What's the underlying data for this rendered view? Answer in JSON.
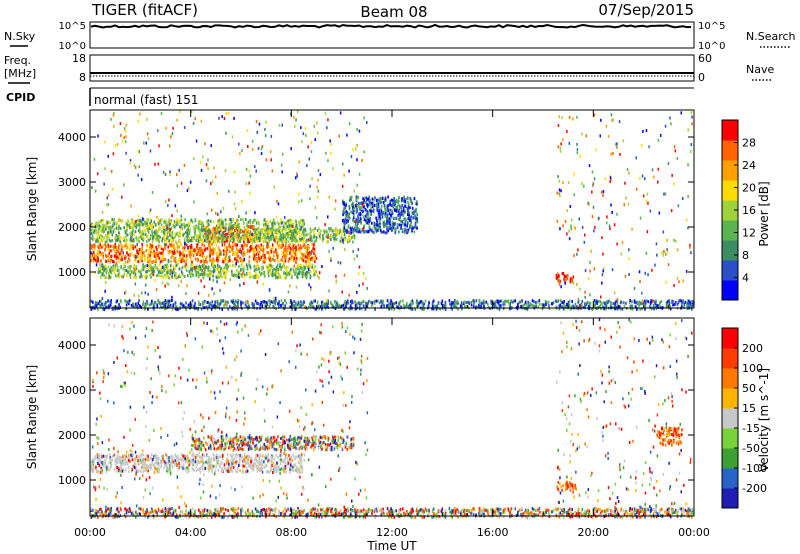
{
  "header": {
    "radar": "TIGER (fitACF)",
    "beam": "Beam 08",
    "date": "07/Sep/2015"
  },
  "top_panels": {
    "nsky": {
      "label": "N.Sky",
      "ticks": [
        "10^5",
        "10^0"
      ]
    },
    "nsearch": {
      "label": "N.Search",
      "ticks": [
        "10^5",
        "10^0"
      ]
    },
    "freq": {
      "label_line1": "Freq.",
      "label_line2": "[MHz]",
      "ticks": [
        "18",
        "8"
      ]
    },
    "nave": {
      "label": "Nave",
      "ticks": [
        "60",
        "0"
      ]
    },
    "cpid": {
      "label": "CPID",
      "text": "normal (fast) 151"
    }
  },
  "chart_data": [
    {
      "type": "heatmap",
      "quantity": "power",
      "ylabel": "Slant Range [km]",
      "xlabel": "",
      "x_ticks": [
        "00:00",
        "04:00",
        "08:00",
        "12:00",
        "16:00",
        "20:00",
        "00:00"
      ],
      "y_ticks": [
        "1000",
        "2000",
        "3000",
        "4000"
      ],
      "xlim_hours": [
        0,
        24
      ],
      "ylim_km": [
        200,
        4600
      ],
      "colorbar": {
        "label": "Power [dB]",
        "ticks": [
          "4",
          "8",
          "12",
          "16",
          "20",
          "24",
          "28"
        ],
        "colors": [
          "#0000ff",
          "#2a50c8",
          "#3c8c64",
          "#5ab450",
          "#a0d23c",
          "#ffdc00",
          "#ffa000",
          "#ff6400",
          "#ff0000"
        ]
      },
      "regions": [
        {
          "t": [
            0.0,
            9.0
          ],
          "r": [
            1250,
            1650
          ],
          "level": "high"
        },
        {
          "t": [
            4.5,
            6.5
          ],
          "r": [
            1700,
            2050
          ],
          "level": "very-high"
        },
        {
          "t": [
            0.0,
            8.5
          ],
          "r": [
            1700,
            2200
          ],
          "level": "medium"
        },
        {
          "t": [
            0.3,
            9.0
          ],
          "r": [
            900,
            1200
          ],
          "level": "medium"
        },
        {
          "t": [
            6.5,
            10.5
          ],
          "r": [
            1700,
            2000
          ],
          "level": "medium"
        },
        {
          "t": [
            10.0,
            13.0
          ],
          "r": [
            1900,
            2700
          ],
          "level": "low"
        },
        {
          "t": [
            18.5,
            19.2
          ],
          "r": [
            800,
            1000
          ],
          "level": "very-high"
        },
        {
          "t": [
            0.0,
            24.0
          ],
          "r": [
            200,
            400
          ],
          "level": "low"
        }
      ]
    },
    {
      "type": "heatmap",
      "quantity": "velocity",
      "ylabel": "Slant Range [km]",
      "xlabel": "Time UT",
      "x_ticks": [
        "00:00",
        "04:00",
        "08:00",
        "12:00",
        "16:00",
        "20:00",
        "00:00"
      ],
      "y_ticks": [
        "1000",
        "2000",
        "3000",
        "4000"
      ],
      "xlim_hours": [
        0,
        24
      ],
      "ylim_km": [
        200,
        4600
      ],
      "colorbar": {
        "label": "Velocity [m s^-1]",
        "ticks": [
          "200",
          "100",
          "50",
          "15",
          "-15",
          "-50",
          "-100",
          "-200"
        ],
        "colors": [
          "#1e1eb4",
          "#2864c8",
          "#3ca032",
          "#78d23c",
          "#c8c8c8",
          "#ffb400",
          "#ff7800",
          "#ff3c00",
          "#ff0000"
        ]
      },
      "regions": [
        {
          "t": [
            0.0,
            8.5
          ],
          "r": [
            1200,
            1600
          ],
          "level": "ground-scatter"
        },
        {
          "t": [
            4.0,
            10.5
          ],
          "r": [
            1700,
            2000
          ],
          "level": "mixed"
        },
        {
          "t": [
            18.5,
            19.3
          ],
          "r": [
            800,
            1000
          ],
          "level": "negative"
        },
        {
          "t": [
            22.5,
            23.5
          ],
          "r": [
            1800,
            2200
          ],
          "level": "negative"
        },
        {
          "t": [
            0.0,
            24.0
          ],
          "r": [
            200,
            400
          ],
          "level": "mixed"
        }
      ]
    }
  ]
}
